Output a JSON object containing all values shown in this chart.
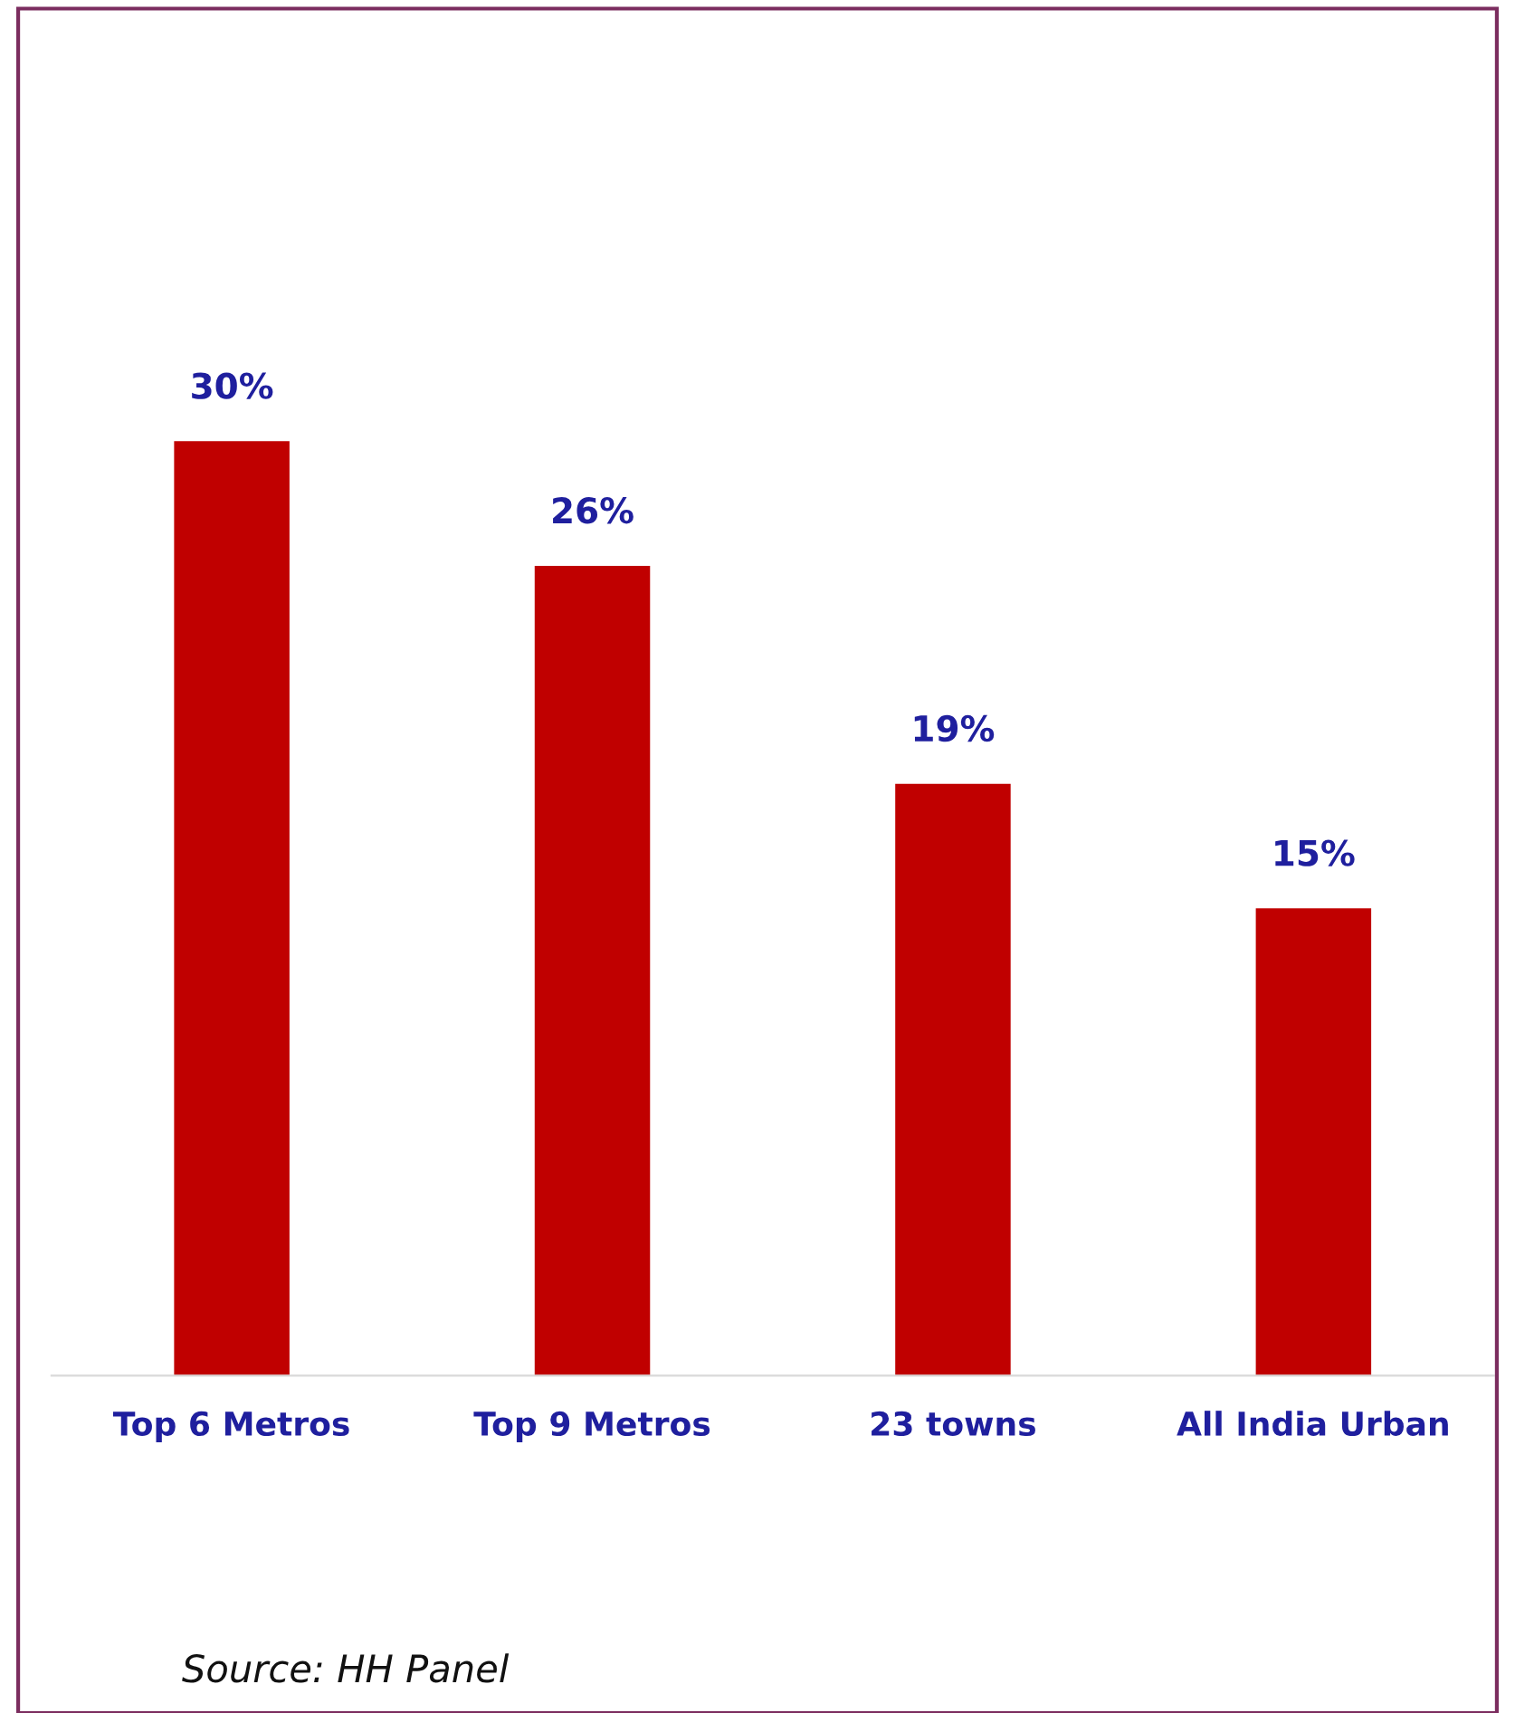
{
  "chart_data": {
    "type": "bar",
    "categories": [
      "Top 6 Metros",
      "Top 9 Metros",
      "23 towns",
      "All India Urban"
    ],
    "values": [
      30,
      26,
      19,
      15
    ],
    "value_labels": [
      "30%",
      "26%",
      "19%",
      "15%"
    ],
    "color": "#c00000",
    "grid": false,
    "legend": false,
    "tick_labels": "x",
    "annotations": [
      "Source: HH Panel"
    ]
  }
}
